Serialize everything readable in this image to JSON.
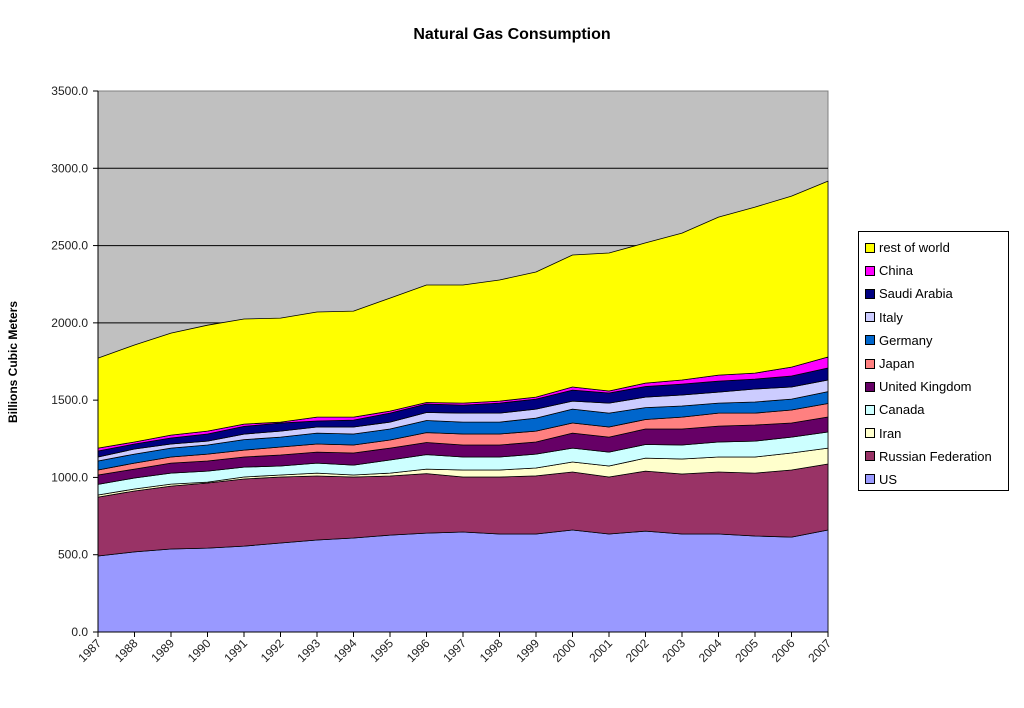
{
  "chart_data": {
    "type": "area",
    "stacked": true,
    "title": "Natural Gas Consumption",
    "xlabel": "",
    "ylabel": "Billions Cubic Meters",
    "ylim": [
      0,
      3500
    ],
    "yticks": [
      "0.0",
      "500.0",
      "1000.0",
      "1500.0",
      "2000.0",
      "2500.0",
      "3000.0",
      "3500.0"
    ],
    "ytick_values": [
      0,
      500,
      1000,
      1500,
      2000,
      2500,
      3000,
      3500
    ],
    "grid": true,
    "legend_position": "right",
    "categories": [
      "1987",
      "1988",
      "1989",
      "1990",
      "1991",
      "1992",
      "1993",
      "1994",
      "1995",
      "1996",
      "1997",
      "1998",
      "1999",
      "2000",
      "2001",
      "2002",
      "2003",
      "2004",
      "2005",
      "2006",
      "2007"
    ],
    "series": [
      {
        "name": "US",
        "color": "#9999ff",
        "values": [
          492,
          518,
          537,
          543,
          556,
          576,
          595,
          608,
          627,
          640,
          647,
          634,
          634,
          660,
          634,
          653,
          634,
          634,
          621,
          614,
          660
        ]
      },
      {
        "name": "Russian Federation",
        "color": "#993366",
        "values": [
          381,
          394,
          407,
          421,
          434,
          427,
          414,
          395,
          382,
          385,
          356,
          369,
          376,
          375,
          369,
          388,
          388,
          401,
          407,
          434,
          427
        ]
      },
      {
        "name": "Iran",
        "color": "#ffffcc",
        "values": [
          13,
          13,
          13,
          6,
          13,
          13,
          19,
          13,
          19,
          29,
          45,
          45,
          51,
          65,
          71,
          84,
          97,
          97,
          104,
          110,
          103
        ]
      },
      {
        "name": "Canada",
        "color": "#ccffff",
        "values": [
          69,
          71,
          71,
          71,
          64,
          58,
          65,
          64,
          85,
          94,
          84,
          84,
          90,
          90,
          90,
          88,
          91,
          97,
          103,
          103,
          104
        ]
      },
      {
        "name": "United Kingdom",
        "color": "#660066",
        "values": [
          61,
          58,
          65,
          65,
          65,
          71,
          71,
          78,
          77,
          78,
          78,
          78,
          78,
          97,
          97,
          100,
          103,
          103,
          104,
          91,
          97
        ]
      },
      {
        "name": "Japan",
        "color": "#ff8080",
        "values": [
          32,
          39,
          39,
          45,
          45,
          52,
          52,
          52,
          52,
          64,
          71,
          71,
          71,
          65,
          65,
          62,
          77,
          84,
          77,
          84,
          87
        ]
      },
      {
        "name": "Germany",
        "color": "#0066cc",
        "values": [
          58,
          58,
          58,
          59,
          68,
          64,
          71,
          71,
          71,
          78,
          77,
          77,
          84,
          90,
          90,
          77,
          72,
          65,
          72,
          71,
          77
        ]
      },
      {
        "name": "Italy",
        "color": "#ccccff",
        "values": [
          26,
          33,
          26,
          25,
          35,
          39,
          39,
          45,
          45,
          52,
          58,
          58,
          58,
          52,
          65,
          68,
          71,
          71,
          84,
          78,
          75
        ]
      },
      {
        "name": "Saudi Arabia",
        "color": "#000080",
        "values": [
          39,
          32,
          39,
          46,
          50,
          52,
          39,
          45,
          58,
          55,
          52,
          65,
          65,
          71,
          65,
          68,
          71,
          71,
          64,
          71,
          78
        ]
      },
      {
        "name": "China",
        "color": "#ff00ff",
        "values": [
          19,
          13,
          19,
          19,
          15,
          6,
          25,
          19,
          13,
          10,
          13,
          13,
          13,
          20,
          13,
          22,
          26,
          39,
          39,
          58,
          71
        ]
      },
      {
        "name": "rest of world",
        "color": "#ffff00",
        "values": [
          582,
          628,
          660,
          685,
          680,
          673,
          680,
          686,
          731,
          760,
          764,
          783,
          809,
          854,
          893,
          907,
          951,
          1022,
          1074,
          1106,
          1138
        ]
      }
    ],
    "legend_order": [
      "rest of world",
      "China",
      "Saudi Arabia",
      "Italy",
      "Germany",
      "Japan",
      "United Kingdom",
      "Canada",
      "Iran",
      "Russian Federation",
      "US"
    ],
    "plot_background": "#c0c0c0"
  }
}
